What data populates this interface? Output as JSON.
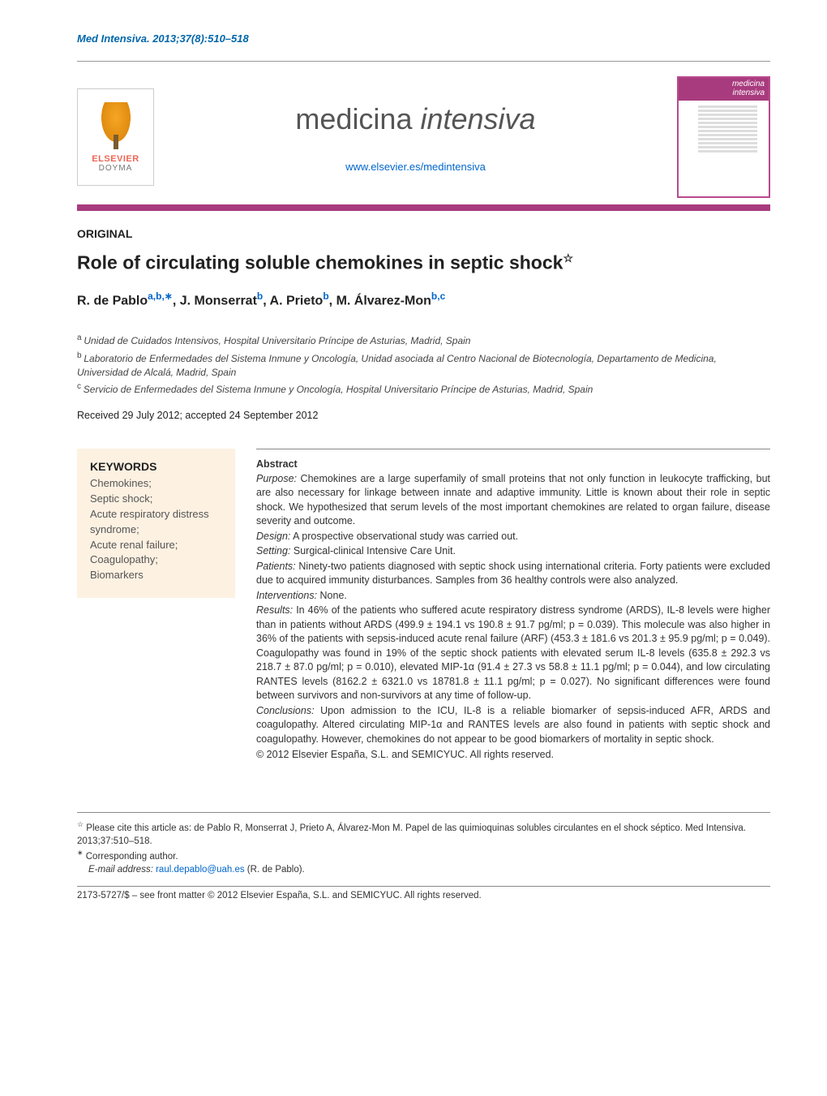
{
  "header_citation": "Med Intensiva. 2013;37(8):510–518",
  "publisher": {
    "name1": "ELSEVIER",
    "name2": "DOYMA"
  },
  "journal": {
    "name_plain": "medicina ",
    "name_italic": "intensiva",
    "url": "www.elsevier.es/medintensiva",
    "cover_text": "medicina\nintensiva"
  },
  "article_type": "ORIGINAL",
  "title": "Role of circulating soluble chemokines in septic shock",
  "title_marker": "☆",
  "authors_html": "R. de Pablo|a,b,∗|, J. Monserrat|b|, A. Prieto|b|, M. Álvarez-Mon|b,c|",
  "affiliations": [
    {
      "marker": "a",
      "text": "Unidad de Cuidados Intensivos, Hospital Universitario Príncipe de Asturias, Madrid, Spain"
    },
    {
      "marker": "b",
      "text": "Laboratorio de Enfermedades del Sistema Inmune y Oncología, Unidad asociada al Centro Nacional de Biotecnología, Departamento de Medicina, Universidad de Alcalá, Madrid, Spain"
    },
    {
      "marker": "c",
      "text": "Servicio de Enfermedades del Sistema Inmune y Oncología, Hospital Universitario Príncipe de Asturias, Madrid, Spain"
    }
  ],
  "received": "Received 29 July 2012; accepted 24 September 2012",
  "keywords": {
    "heading": "KEYWORDS",
    "items": [
      "Chemokines;",
      "Septic shock;",
      "Acute respiratory distress syndrome;",
      "Acute renal failure;",
      "Coagulopathy;",
      "Biomarkers"
    ]
  },
  "abstract": {
    "heading": "Abstract",
    "sections": [
      {
        "label": "Purpose:",
        "text": " Chemokines are a large superfamily of small proteins that not only function in leukocyte trafficking, but are also necessary for linkage between innate and adaptive immunity. Little is known about their role in septic shock. We hypothesized that serum levels of the most important chemokines are related to organ failure, disease severity and outcome."
      },
      {
        "label": "Design:",
        "text": " A prospective observational study was carried out."
      },
      {
        "label": "Setting:",
        "text": " Surgical-clinical Intensive Care Unit."
      },
      {
        "label": "Patients:",
        "text": " Ninety-two patients diagnosed with septic shock using international criteria. Forty patients were excluded due to acquired immunity disturbances. Samples from 36 healthy controls were also analyzed."
      },
      {
        "label": "Interventions:",
        "text": " None."
      },
      {
        "label": "Results:",
        "text": " In 46% of the patients who suffered acute respiratory distress syndrome (ARDS), IL-8 levels were higher than in patients without ARDS (499.9 ± 194.1 vs 190.8 ± 91.7 pg/ml; p = 0.039). This molecule was also higher in 36% of the patients with sepsis-induced acute renal failure (ARF) (453.3 ± 181.6 vs 201.3 ± 95.9 pg/ml; p = 0.049). Coagulopathy was found in 19% of the septic shock patients with elevated serum IL-8 levels (635.8 ± 292.3 vs 218.7 ± 87.0 pg/ml; p = 0.010), elevated MIP-1α (91.4 ± 27.3 vs 58.8 ± 11.1 pg/ml; p = 0.044), and low circulating RANTES levels (8162.2 ± 6321.0 vs 18781.8 ± 11.1 pg/ml; p = 0.027). No significant differences were found between survivors and non-survivors at any time of follow-up."
      },
      {
        "label": "Conclusions:",
        "text": " Upon admission to the ICU, IL-8 is a reliable biomarker of sepsis-induced AFR, ARDS and coagulopathy. Altered circulating MIP-1α and RANTES levels are also found in patients with septic shock and coagulopathy. However, chemokines do not appear to be good biomarkers of mortality in septic shock."
      }
    ],
    "copyright": "© 2012 Elsevier España, S.L. and SEMICYUC. All rights reserved."
  },
  "footnotes": {
    "cite": {
      "marker": "☆",
      "text": " Please cite this article as: de Pablo R, Monserrat J, Prieto A, Álvarez-Mon M. Papel de las quimioquinas solubles circulantes en el shock séptico. Med Intensiva. 2013;37:510–518."
    },
    "corresponding": {
      "marker": "∗",
      "text": " Corresponding author."
    },
    "email_label": "E-mail address: ",
    "email": "raul.depablo@uah.es",
    "email_tail": " (R. de Pablo)."
  },
  "footer": "2173-5727/$ – see front matter © 2012 Elsevier España, S.L. and SEMICYUC. All rights reserved.",
  "colors": {
    "link": "#0066cc",
    "accent_bar": "#a83b7e",
    "keyword_bg": "#fdf1e2",
    "text": "#333333"
  },
  "typography": {
    "title_fontsize": 23,
    "journal_fontsize": 36,
    "body_fontsize": 12.5,
    "keyword_fontsize": 13
  }
}
